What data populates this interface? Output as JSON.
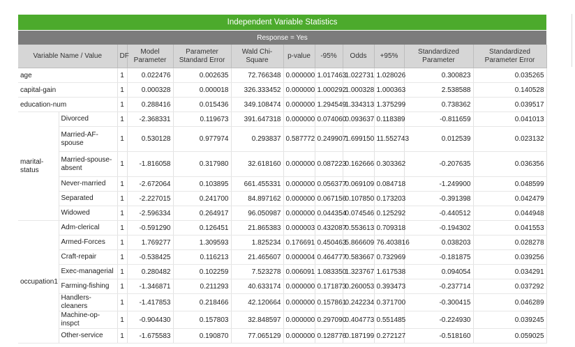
{
  "title": "Independent Variable Statistics",
  "response": "Response = Yes",
  "headers": [
    "Variable Name / Value",
    "DF",
    "Model Parameter",
    "Parameter Standard Error",
    "Wald Chi-Square",
    "p-value",
    "-95%",
    "Odds",
    "+95%",
    "Standardized Parameter",
    "Standardized Parameter Error"
  ],
  "rows": [
    {
      "var": "age",
      "df": "1",
      "vals": [
        "0.022476",
        "0.002635",
        "72.766348",
        "0.000000",
        "1.017463",
        "1.022731",
        "1.028026",
        "0.300823",
        "0.035265"
      ]
    },
    {
      "var": "capital-gain",
      "df": "1",
      "vals": [
        "0.000328",
        "0.000018",
        "326.333452",
        "0.000000",
        "1.000292",
        "1.000328",
        "1.000363",
        "2.538588",
        "0.140528"
      ]
    },
    {
      "var": "education-num",
      "df": "1",
      "vals": [
        "0.288416",
        "0.015436",
        "349.108474",
        "0.000000",
        "1.294549",
        "1.334313",
        "1.375299",
        "0.738362",
        "0.039517"
      ]
    }
  ],
  "groups": [
    {
      "name": "marital-status",
      "levels": [
        {
          "level": "Divorced",
          "df": "1",
          "vals": [
            "-2.368331",
            "0.119673",
            "391.647318",
            "0.000000",
            "0.074060",
            "0.093637",
            "0.118389",
            "-0.811659",
            "0.041013"
          ]
        },
        {
          "level": "Married-AF-spouse",
          "df": "1",
          "tall": true,
          "vals": [
            "0.530128",
            "0.977974",
            "0.293837",
            "0.587772",
            "0.249907",
            "1.699150",
            "11.552743",
            "0.012539",
            "0.023132"
          ]
        },
        {
          "level": "Married-spouse-absent",
          "df": "1",
          "tall": true,
          "vals": [
            "-1.816058",
            "0.317980",
            "32.618160",
            "0.000000",
            "0.087223",
            "0.162666",
            "0.303362",
            "-0.207635",
            "0.036356"
          ]
        },
        {
          "level": "Never-married",
          "df": "1",
          "vals": [
            "-2.672064",
            "0.103895",
            "661.455331",
            "0.000000",
            "0.056377",
            "0.069109",
            "0.084718",
            "-1.249900",
            "0.048599"
          ]
        },
        {
          "level": "Separated",
          "df": "1",
          "vals": [
            "-2.227015",
            "0.241700",
            "84.897162",
            "0.000000",
            "0.067156",
            "0.107850",
            "0.173203",
            "-0.391398",
            "0.042479"
          ]
        },
        {
          "level": "Widowed",
          "df": "1",
          "vals": [
            "-2.596334",
            "0.264917",
            "96.050987",
            "0.000000",
            "0.044354",
            "0.074546",
            "0.125292",
            "-0.440512",
            "0.044948"
          ]
        }
      ]
    },
    {
      "name": "occupation1",
      "levels": [
        {
          "level": "Adm-clerical",
          "df": "1",
          "vals": [
            "-0.591290",
            "0.126451",
            "21.865383",
            "0.000003",
            "0.432087",
            "0.553613",
            "0.709318",
            "-0.194302",
            "0.041553"
          ]
        },
        {
          "level": "Armed-Forces",
          "df": "1",
          "vals": [
            "1.769277",
            "1.309593",
            "1.825234",
            "0.176691",
            "0.450463",
            "5.866609",
            "76.403816",
            "0.038203",
            "0.028278"
          ]
        },
        {
          "level": "Craft-repair",
          "df": "1",
          "vals": [
            "-0.538425",
            "0.116213",
            "21.465607",
            "0.000004",
            "0.464777",
            "0.583667",
            "0.732969",
            "-0.181875",
            "0.039256"
          ]
        },
        {
          "level": "Exec-managerial",
          "df": "1",
          "vals": [
            "0.280482",
            "0.102259",
            "7.523278",
            "0.006091",
            "1.083350",
            "1.323767",
            "1.617538",
            "0.094054",
            "0.034291"
          ]
        },
        {
          "level": "Farming-fishing",
          "df": "1",
          "vals": [
            "-1.346871",
            "0.211293",
            "40.633174",
            "0.000000",
            "0.171873",
            "0.260053",
            "0.393473",
            "-0.237714",
            "0.037292"
          ]
        },
        {
          "level": "Handlers-cleaners",
          "df": "1",
          "vals": [
            "-1.417853",
            "0.218466",
            "42.120664",
            "0.000000",
            "0.157861",
            "0.242234",
            "0.371700",
            "-0.300415",
            "0.046289"
          ]
        },
        {
          "level": "Machine-op-inspct",
          "df": "1",
          "vals": [
            "-0.904430",
            "0.157803",
            "32.848597",
            "0.000000",
            "0.297090",
            "0.404773",
            "0.551485",
            "-0.224930",
            "0.039245"
          ]
        },
        {
          "level": "Other-service",
          "df": "1",
          "vals": [
            "-1.675583",
            "0.190870",
            "77.065129",
            "0.000000",
            "0.128776",
            "0.187199",
            "0.272127",
            "-0.518160",
            "0.059025"
          ]
        }
      ]
    }
  ],
  "colors": {
    "title_bar": "#4caa2c",
    "response_bar": "#7c7c7c",
    "header_bg": "#d6d6d6"
  }
}
